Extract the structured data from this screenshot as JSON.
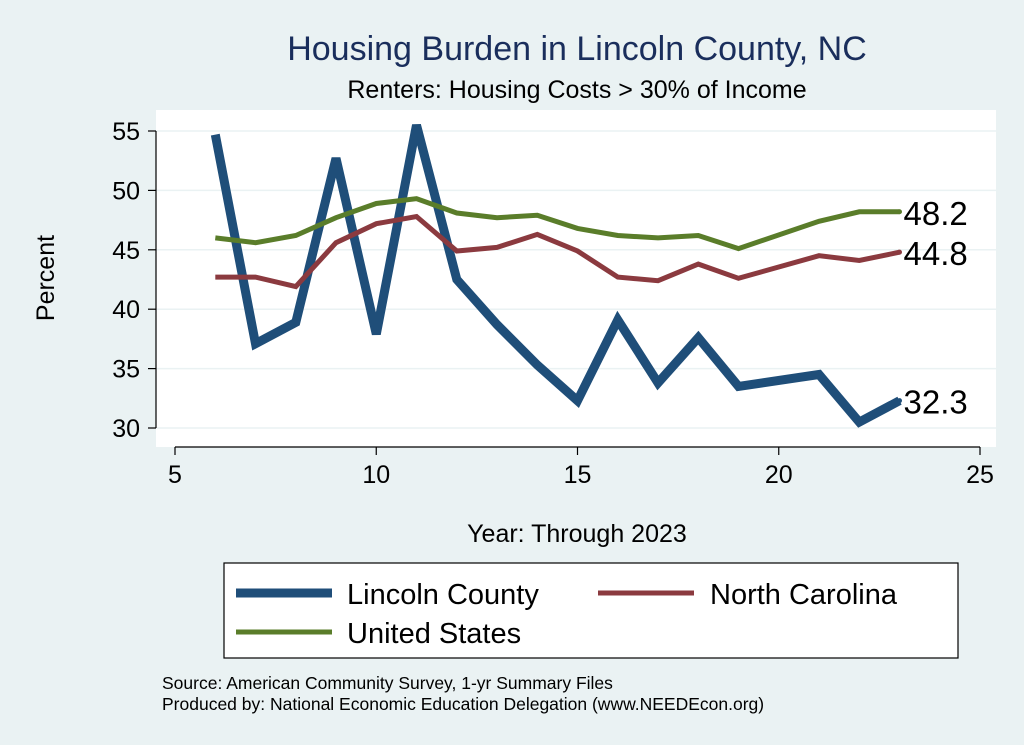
{
  "chart_data": {
    "type": "line",
    "title": "Housing Burden in Lincoln County, NC",
    "subtitle": "Renters: Housing Costs > 30% of Income",
    "xlabel": "Year: Through 2023",
    "ylabel": "Percent",
    "xlim": [
      5,
      25
    ],
    "ylim": [
      29,
      56.3
    ],
    "xticks": [
      5,
      10,
      15,
      20,
      25
    ],
    "yticks": [
      30,
      35,
      40,
      45,
      50,
      55
    ],
    "grid": true,
    "legend_position": "bottom",
    "series": [
      {
        "name": "Lincoln County",
        "color": "#1f4e79",
        "weight": "thick",
        "x": [
          6,
          7,
          8,
          9,
          10,
          11,
          12,
          13,
          14,
          15,
          16,
          17,
          18,
          19,
          21,
          22,
          23
        ],
        "y": [
          54.7,
          37.1,
          38.9,
          52.7,
          37.9,
          55.5,
          42.5,
          38.7,
          35.3,
          32.3,
          39.1,
          33.8,
          37.6,
          33.5,
          34.5,
          30.5,
          32.3
        ],
        "end_label": "32.3"
      },
      {
        "name": "North Carolina",
        "color": "#8b3a3f",
        "weight": "medium",
        "x": [
          6,
          7,
          8,
          9,
          10,
          11,
          12,
          13,
          14,
          15,
          16,
          17,
          18,
          19,
          21,
          22,
          23
        ],
        "y": [
          42.7,
          42.7,
          41.9,
          45.6,
          47.2,
          47.8,
          44.9,
          45.2,
          46.3,
          44.9,
          42.7,
          42.4,
          43.8,
          42.6,
          44.5,
          44.1,
          44.8
        ],
        "end_label": "44.8"
      },
      {
        "name": "United States",
        "color": "#5a7d2a",
        "weight": "medium",
        "x": [
          6,
          7,
          8,
          9,
          10,
          11,
          12,
          13,
          14,
          15,
          16,
          17,
          18,
          19,
          21,
          22,
          23
        ],
        "y": [
          46.0,
          45.6,
          46.2,
          47.7,
          48.9,
          49.3,
          48.1,
          47.7,
          47.9,
          46.8,
          46.2,
          46.0,
          46.2,
          45.1,
          47.4,
          48.2,
          48.2
        ],
        "end_label": "48.2"
      }
    ]
  },
  "footer": {
    "source": "Source: American Community Survey, 1-yr Summary Files",
    "produced_by": "Produced by: National Economic Education Delegation (www.NEEDEcon.org)"
  }
}
